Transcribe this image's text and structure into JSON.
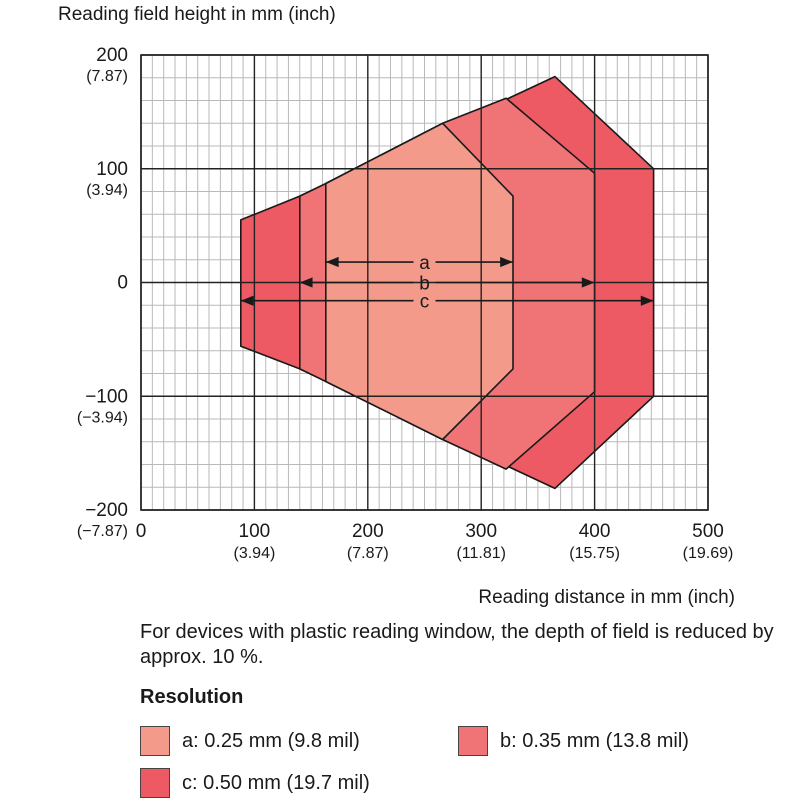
{
  "chart_data": {
    "type": "area",
    "title": "",
    "ylabel": "Reading field height in mm (inch)",
    "xlabel": "Reading distance in mm (inch)",
    "xlim": [
      0,
      500
    ],
    "ylim": [
      -200,
      200
    ],
    "grid": true,
    "x_ticks": [
      {
        "mm": "0",
        "inch": ""
      },
      {
        "mm": "100",
        "inch": "(3.94)"
      },
      {
        "mm": "200",
        "inch": "(7.87)"
      },
      {
        "mm": "300",
        "inch": "(11.81)"
      },
      {
        "mm": "400",
        "inch": "(15.75)"
      },
      {
        "mm": "500",
        "inch": "(19.69)"
      }
    ],
    "y_ticks": [
      {
        "mm": "200",
        "inch": "(7.87)"
      },
      {
        "mm": "100",
        "inch": "(3.94)"
      },
      {
        "mm": "0",
        "inch": ""
      },
      {
        "mm": "−100",
        "inch": "(−3.94)"
      },
      {
        "mm": "−200",
        "inch": "(−7.87)"
      }
    ],
    "series": [
      {
        "name": "c",
        "color": "#ee5a64",
        "outline": [
          [
            88,
            55
          ],
          [
            140,
            76
          ],
          [
            365,
            181
          ],
          [
            452,
            100
          ],
          [
            452,
            -100
          ],
          [
            365,
            -181
          ],
          [
            140,
            -76
          ],
          [
            88,
            -56
          ]
        ],
        "range": [
          88,
          452
        ]
      },
      {
        "name": "b",
        "color": "#f07476",
        "outline": [
          [
            140,
            76
          ],
          [
            163,
            87
          ],
          [
            266,
            140
          ],
          [
            322,
            162
          ],
          [
            400,
            96
          ],
          [
            400,
            -96
          ],
          [
            322,
            -164
          ],
          [
            266,
            -138
          ],
          [
            163,
            -87
          ],
          [
            140,
            -76
          ]
        ],
        "range": [
          140,
          400
        ]
      },
      {
        "name": "a",
        "color": "#f39a8a",
        "outline": [
          [
            163,
            87
          ],
          [
            266,
            140
          ],
          [
            328,
            76
          ],
          [
            328,
            -76
          ],
          [
            266,
            -138
          ],
          [
            163,
            -87
          ]
        ],
        "range": [
          163,
          328
        ]
      }
    ],
    "dimension_labels": [
      {
        "label": "a",
        "y": 18
      },
      {
        "label": "b",
        "y": 0
      },
      {
        "label": "c",
        "y": -16
      }
    ]
  },
  "note": "For devices with plastic reading window, the depth of field is reduced by approx. 10 %.",
  "legend": {
    "title": "Resolution",
    "items": [
      {
        "id": "a",
        "label": "a: 0.25 mm (9.8 mil)",
        "color": "#f39a8a"
      },
      {
        "id": "b",
        "label": "b: 0.35 mm (13.8 mil)",
        "color": "#f07476"
      },
      {
        "id": "c",
        "label": "c: 0.50 mm (19.7 mil)",
        "color": "#ee5a64"
      }
    ]
  }
}
